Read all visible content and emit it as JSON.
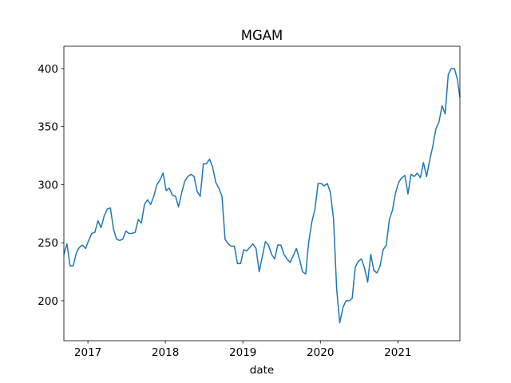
{
  "chart_data": {
    "type": "line",
    "title": "MGAM",
    "x_label": "date",
    "color": "#1f77b4",
    "x": [
      2016.69,
      2016.73,
      2016.77,
      2016.81,
      2016.85,
      2016.89,
      2016.93,
      2016.97,
      2017.01,
      2017.05,
      2017.09,
      2017.13,
      2017.17,
      2017.21,
      2017.25,
      2017.29,
      2017.33,
      2017.37,
      2017.41,
      2017.45,
      2017.49,
      2017.53,
      2017.57,
      2017.61,
      2017.65,
      2017.69,
      2017.73,
      2017.77,
      2017.81,
      2017.85,
      2017.89,
      2017.93,
      2017.97,
      2018.01,
      2018.05,
      2018.09,
      2018.13,
      2018.17,
      2018.21,
      2018.25,
      2018.29,
      2018.33,
      2018.37,
      2018.41,
      2018.45,
      2018.49,
      2018.53,
      2018.57,
      2018.61,
      2018.65,
      2018.69,
      2018.73,
      2018.77,
      2018.81,
      2018.85,
      2018.89,
      2018.93,
      2018.97,
      2019.01,
      2019.05,
      2019.09,
      2019.13,
      2019.17,
      2019.21,
      2019.25,
      2019.29,
      2019.33,
      2019.37,
      2019.41,
      2019.45,
      2019.49,
      2019.53,
      2019.57,
      2019.61,
      2019.65,
      2019.69,
      2019.73,
      2019.77,
      2019.81,
      2019.85,
      2019.89,
      2019.93,
      2019.97,
      2020.01,
      2020.05,
      2020.09,
      2020.13,
      2020.17,
      2020.21,
      2020.25,
      2020.29,
      2020.33,
      2020.37,
      2020.41,
      2020.45,
      2020.49,
      2020.53,
      2020.57,
      2020.61,
      2020.65,
      2020.69,
      2020.73,
      2020.77,
      2020.81,
      2020.85,
      2020.89,
      2020.93,
      2020.97,
      2021.01,
      2021.05,
      2021.09,
      2021.13,
      2021.17,
      2021.21,
      2021.25,
      2021.29,
      2021.33,
      2021.37,
      2021.41,
      2021.45,
      2021.49,
      2021.53,
      2021.57,
      2021.61,
      2021.65,
      2021.69,
      2021.73,
      2021.77,
      2021.8
    ],
    "values": [
      240,
      249,
      230,
      230,
      241,
      246,
      248,
      245,
      252,
      258,
      259,
      269,
      263,
      273,
      279,
      280,
      262,
      253,
      252,
      253,
      260,
      258,
      258,
      259,
      270,
      267,
      283,
      287,
      283,
      290,
      300,
      304,
      310,
      295,
      297,
      291,
      290,
      281,
      293,
      303,
      307,
      309,
      307,
      294,
      290,
      318,
      318,
      322,
      315,
      302,
      297,
      290,
      253,
      249,
      247,
      247,
      232,
      232,
      244,
      243,
      246,
      249,
      245,
      225,
      238,
      251,
      248,
      240,
      236,
      248,
      248,
      240,
      236,
      233,
      239,
      245,
      236,
      225,
      223,
      251,
      268,
      279,
      301,
      301,
      299,
      301,
      293,
      270,
      210,
      181,
      194,
      200,
      200,
      202,
      229,
      234,
      236,
      228,
      216,
      240,
      226,
      224,
      230,
      244,
      248,
      270,
      278,
      293,
      302,
      306,
      308,
      292,
      309,
      307,
      310,
      306,
      319,
      307,
      321,
      333,
      348,
      354,
      368,
      361,
      395,
      400,
      400,
      390,
      375
    ],
    "xlim": [
      2016.69,
      2021.8
    ],
    "xticks": [
      2017,
      2018,
      2019,
      2020,
      2021
    ],
    "ylim": [
      165.6,
      419.2
    ],
    "yticks": [
      200,
      250,
      300,
      350,
      400
    ]
  }
}
